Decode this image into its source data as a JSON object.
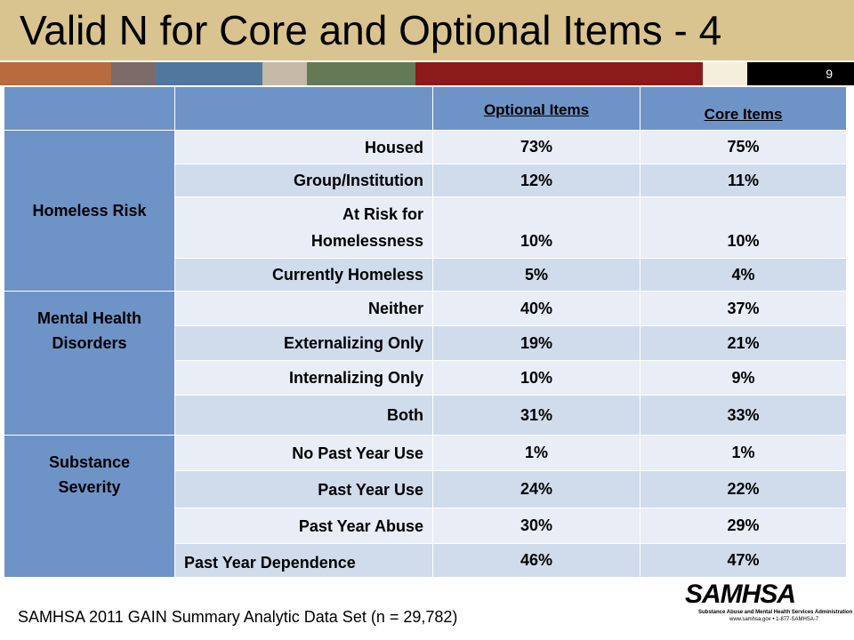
{
  "header": {
    "title": "Valid N for Core and Optional Items - 4",
    "page_number": "9"
  },
  "table": {
    "columns": [
      "Optional Items",
      "Core Items"
    ],
    "groups": [
      {
        "label": "Homeless Risk",
        "rows": [
          {
            "label": "Housed",
            "optional": "73%",
            "core": "75%"
          },
          {
            "label": "Group/Institution",
            "optional": "12%",
            "core": "11%"
          },
          {
            "label": "At Risk for Homelessness",
            "optional": "10%",
            "core": "10%"
          },
          {
            "label": "Currently Homeless",
            "optional": "5%",
            "core": "4%"
          }
        ]
      },
      {
        "label": "Mental Health Disorders",
        "rows": [
          {
            "label": "Neither",
            "optional": "40%",
            "core": "37%"
          },
          {
            "label": "Externalizing Only",
            "optional": "19%",
            "core": "21%"
          },
          {
            "label": "Internalizing Only",
            "optional": "10%",
            "core": "9%"
          },
          {
            "label": "Both",
            "optional": "31%",
            "core": "33%"
          }
        ]
      },
      {
        "label": "Substance Severity",
        "rows": [
          {
            "label": "No Past Year Use",
            "optional": "1%",
            "core": "1%"
          },
          {
            "label": "Past Year Use",
            "optional": "24%",
            "core": "22%"
          },
          {
            "label": "Past Year Abuse",
            "optional": "30%",
            "core": "29%"
          },
          {
            "label": "Past Year Dependence",
            "optional": "46%",
            "core": "47%"
          }
        ]
      }
    ]
  },
  "footer": {
    "source": "SAMHSA 2011 GAIN Summary Analytic Data Set (n = 29,782)",
    "logo": "SAMHSA",
    "logo_subtitle": "Substance Abuse and Mental Health Services Administration",
    "logo_contact": "www.samhsa.gov • 1-877-SAMHSA-7"
  }
}
